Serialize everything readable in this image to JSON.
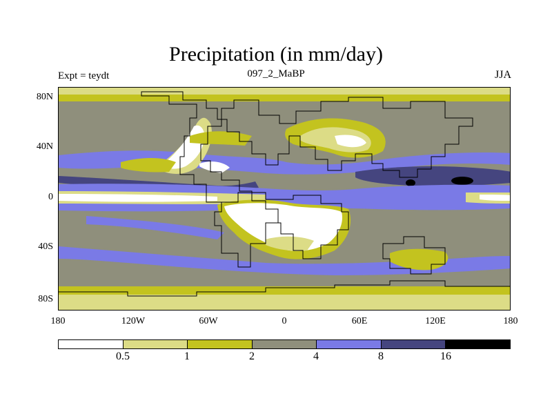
{
  "title": "Precipitation (in mm/day)",
  "left_label": "Expt = teydt",
  "center_label": "097_2_MaBP",
  "right_label": "JJA",
  "y_ticks": [
    "80N",
    "40N",
    "0",
    "40S",
    "80S"
  ],
  "x_ticks": [
    "180",
    "120W",
    "60W",
    "0",
    "60E",
    "120E",
    "180"
  ],
  "colorbar": {
    "levels": [
      "0.5",
      "1",
      "2",
      "4",
      "8",
      "16"
    ],
    "colors": [
      "#ffffff",
      "#dcdc86",
      "#c3c31f",
      "#8f8f7c",
      "#7a7ae6",
      "#45457f",
      "#000000"
    ]
  },
  "colors": {
    "white": "#ffffff",
    "light_yellow": "#dcdc86",
    "olive": "#c3c31f",
    "gray": "#8f8f7c",
    "blue": "#7a7ae6",
    "dark_blue": "#45457f",
    "black": "#000000"
  }
}
